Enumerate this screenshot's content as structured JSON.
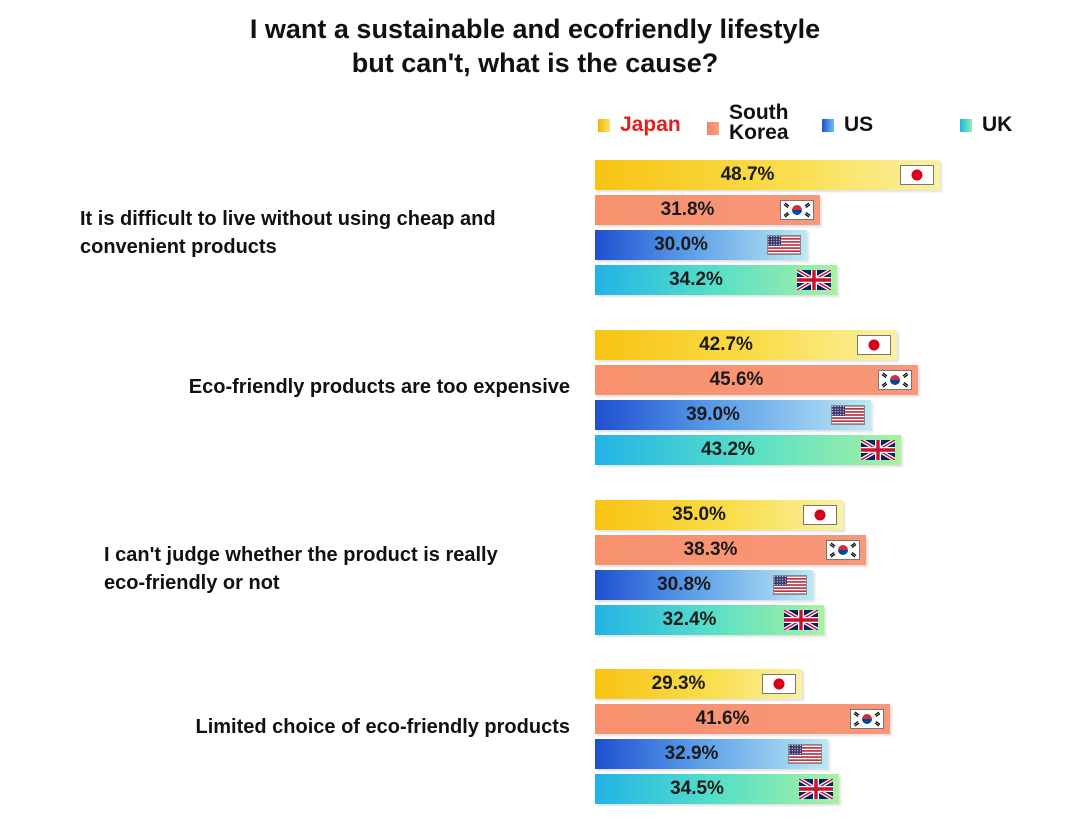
{
  "chart_data": {
    "type": "bar",
    "orientation": "horizontal",
    "title": [
      "I want a sustainable and ecofriendly lifestyle",
      "but can't, what is the cause?"
    ],
    "categories": [
      [
        "It is difficult to live without using cheap and",
        "convenient products"
      ],
      [
        "Eco-friendly products are too expensive"
      ],
      [
        "I can't judge whether the product is really",
        "eco-friendly or not"
      ],
      [
        "Limited choice of  eco-friendly products"
      ]
    ],
    "series": [
      {
        "name": "Japan",
        "values": [
          48.7,
          42.7,
          35.0,
          29.3
        ],
        "value_labels": [
          "48.7%",
          "42.7%",
          "35.0%",
          "29.3%"
        ],
        "color": "#f7cf1e",
        "label_color": "#e0201b",
        "flag": "japan-flag-icon"
      },
      {
        "name": "South Korea",
        "name_lines": [
          "South",
          "Korea"
        ],
        "values": [
          31.8,
          45.6,
          38.3,
          41.6
        ],
        "value_labels": [
          "31.8%",
          "45.6%",
          "38.3%",
          "41.6%"
        ],
        "color": "#f7916e",
        "label_color": "#111111",
        "flag": "south-korea-flag-icon"
      },
      {
        "name": "US",
        "values": [
          30.0,
          39.0,
          30.8,
          32.9
        ],
        "value_labels": [
          "30.0%",
          "39.0%",
          "30.8%",
          "32.9%"
        ],
        "color": "#2f6fd8",
        "label_color": "#111111",
        "flag": "us-flag-icon"
      },
      {
        "name": "UK",
        "values": [
          34.2,
          43.2,
          32.4,
          34.5
        ],
        "value_labels": [
          "34.2%",
          "43.2%",
          "32.4%",
          "34.5%"
        ],
        "color": "#39c9e0",
        "label_color": "#111111",
        "flag": "uk-flag-icon"
      }
    ],
    "unit": "%",
    "legend_position": "top-right",
    "grid": false
  }
}
